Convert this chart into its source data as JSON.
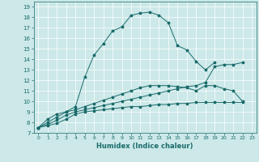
{
  "xlabel": "Humidex (Indice chaleur)",
  "bg_color": "#cce8e8",
  "line_color": "#1a6b6b",
  "grid_color": "#ffffff",
  "xlim": [
    -0.5,
    23.5
  ],
  "ylim": [
    7,
    19.5
  ],
  "xticks": [
    0,
    1,
    2,
    3,
    4,
    5,
    6,
    7,
    8,
    9,
    10,
    11,
    12,
    13,
    14,
    15,
    16,
    17,
    18,
    19,
    20,
    21,
    22,
    23
  ],
  "yticks": [
    7,
    8,
    9,
    10,
    11,
    12,
    13,
    14,
    15,
    16,
    17,
    18,
    19
  ],
  "curve1_x": [
    0,
    1,
    2,
    3,
    4,
    5,
    6,
    7,
    8,
    9,
    10,
    11,
    12,
    13,
    14,
    15,
    16,
    17,
    18,
    19
  ],
  "curve1_y": [
    7.5,
    8.3,
    8.8,
    9.0,
    9.5,
    12.3,
    14.4,
    15.5,
    16.7,
    17.1,
    18.2,
    18.4,
    18.5,
    18.2,
    17.5,
    15.3,
    14.9,
    13.8,
    13.0,
    13.7
  ],
  "curve2_x": [
    0,
    1,
    2,
    3,
    4,
    5,
    6,
    7,
    8,
    9,
    10,
    11,
    12,
    13,
    14,
    15,
    16,
    17,
    18,
    19,
    20,
    21,
    22
  ],
  "curve2_y": [
    7.5,
    8.0,
    8.5,
    9.0,
    9.2,
    9.5,
    9.8,
    10.1,
    10.4,
    10.7,
    11.0,
    11.3,
    11.5,
    11.5,
    11.5,
    11.4,
    11.3,
    11.0,
    11.5,
    11.5,
    11.2,
    11.0,
    10.0
  ],
  "curve3_x": [
    0,
    1,
    2,
    3,
    4,
    5,
    6,
    7,
    8,
    9,
    10,
    11,
    12,
    13,
    14,
    15,
    16,
    17,
    18,
    19,
    20,
    21,
    22
  ],
  "curve3_y": [
    7.5,
    7.8,
    8.2,
    8.7,
    9.0,
    9.2,
    9.4,
    9.6,
    9.8,
    10.0,
    10.2,
    10.4,
    10.6,
    10.8,
    11.0,
    11.2,
    11.4,
    11.5,
    11.8,
    13.3,
    13.5,
    13.5,
    13.7
  ],
  "curve4_x": [
    0,
    1,
    2,
    3,
    4,
    5,
    6,
    7,
    8,
    9,
    10,
    11,
    12,
    13,
    14,
    15,
    16,
    17,
    18,
    19,
    20,
    21,
    22
  ],
  "curve4_y": [
    7.5,
    7.7,
    7.9,
    8.3,
    8.8,
    9.0,
    9.1,
    9.2,
    9.3,
    9.4,
    9.5,
    9.5,
    9.6,
    9.7,
    9.7,
    9.8,
    9.8,
    9.9,
    9.9,
    9.9,
    9.9,
    9.9,
    9.9
  ]
}
